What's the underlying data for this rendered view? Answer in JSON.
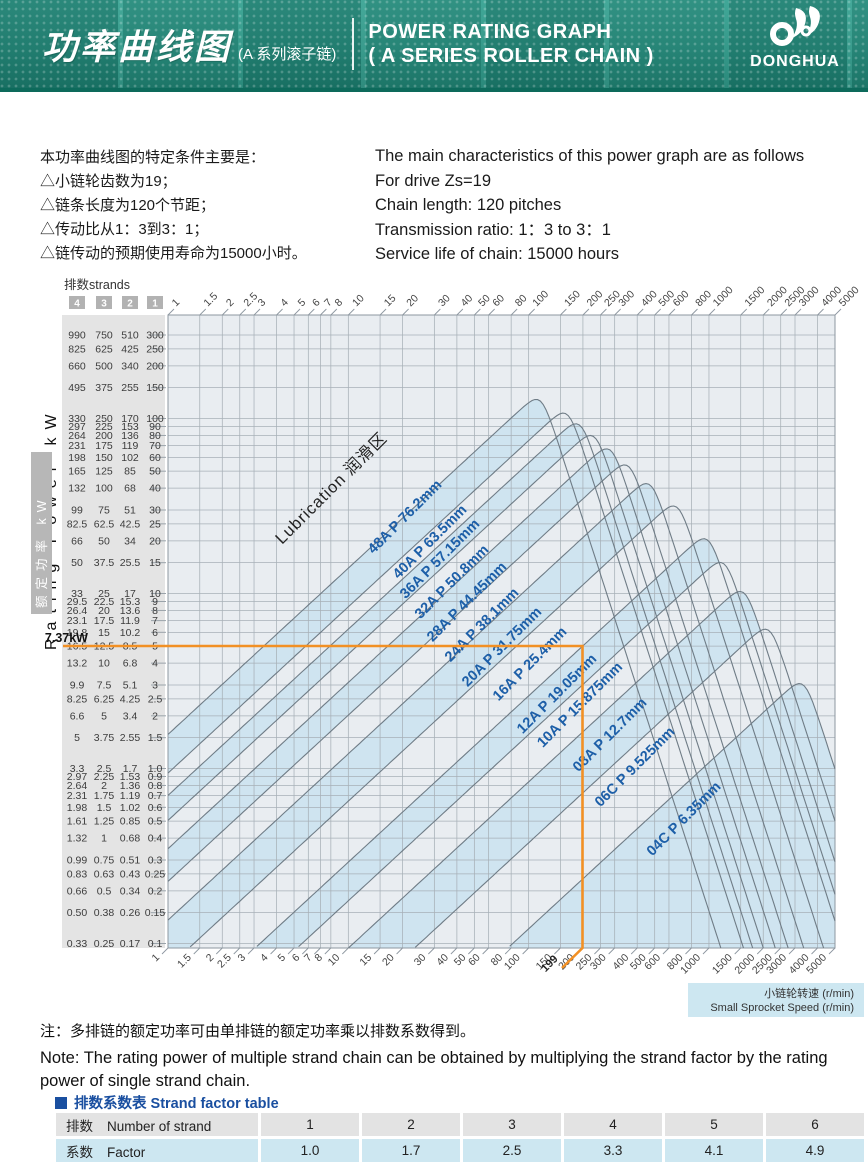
{
  "header": {
    "title_cn": "功率曲线图",
    "subtitle_cn": "(A 系列滚子链)",
    "title_en_line1": "POWER RATING GRAPH",
    "title_en_line2": "( A SERIES ROLLER CHAIN )",
    "brand": "DONGHUA"
  },
  "intro": {
    "cn_lines": [
      "本功率曲线图的特定条件主要是：",
      "△小链轮齿数为19；",
      "△链条长度为120个节距；",
      "△传动比从1：3到3：1；",
      "△链传动的预期使用寿命为15000小时。"
    ],
    "en_lines": [
      "The main characteristics of this power graph  are as follows",
      "For drive Zs=19",
      "Chain length: 120 pitches",
      "Transmission ratio: 1：3 to 3：1",
      "Service life of chain: 15000 hours"
    ]
  },
  "chart": {
    "strands_label": "排数strands",
    "strand_numbers": [
      "4",
      "3",
      "2",
      "1"
    ],
    "y_axis_label_en": "Rating Power kW",
    "y_axis_label_cn": "额定功率 kW",
    "rows": [
      [
        "990",
        "750",
        "510",
        "300"
      ],
      [
        "825",
        "625",
        "425",
        "250"
      ],
      [
        "660",
        "500",
        "340",
        "200"
      ],
      [
        "495",
        "375",
        "255",
        "150"
      ],
      [
        "330",
        "250",
        "170",
        "100"
      ],
      [
        "297",
        "225",
        "153",
        "90"
      ],
      [
        "264",
        "200",
        "136",
        "80"
      ],
      [
        "231",
        "175",
        "119",
        "70"
      ],
      [
        "198",
        "150",
        "102",
        "60"
      ],
      [
        "165",
        "125",
        "85",
        "50"
      ],
      [
        "132",
        "100",
        "68",
        "40"
      ],
      [
        "99",
        "75",
        "51",
        "30"
      ],
      [
        "82.5",
        "62.5",
        "42.5",
        "25"
      ],
      [
        "66",
        "50",
        "34",
        "20"
      ],
      [
        "50",
        "37.5",
        "25.5",
        "15"
      ],
      [
        "33",
        "25",
        "17",
        "10"
      ],
      [
        "29.5",
        "22.5",
        "15.3",
        "9"
      ],
      [
        "26.4",
        "20",
        "13.6",
        "8"
      ],
      [
        "23.1",
        "17.5",
        "11.9",
        "7"
      ],
      [
        "19.8",
        "15",
        "10.2",
        "6"
      ],
      [
        "16.5",
        "12.5",
        "8.5",
        "5"
      ],
      [
        "13.2",
        "10",
        "6.8",
        "4"
      ],
      [
        "9.9",
        "7.5",
        "5.1",
        "3"
      ],
      [
        "8.25",
        "6.25",
        "4.25",
        "2.5"
      ],
      [
        "6.6",
        "5",
        "3.4",
        "2"
      ],
      [
        "5",
        "3.75",
        "2.55",
        "1.5"
      ],
      [
        "3.3",
        "2.5",
        "1.7",
        "1.0"
      ],
      [
        "2.97",
        "2.25",
        "1.53",
        "0.9"
      ],
      [
        "2.64",
        "2",
        "1.36",
        "0.8"
      ],
      [
        "2.31",
        "1.75",
        "1.19",
        "0.7"
      ],
      [
        "1.98",
        "1.5",
        "1.02",
        "0.6"
      ],
      [
        "1.61",
        "1.25",
        "0.85",
        "0.5"
      ],
      [
        "1.32",
        "1",
        "0.68",
        "0.4"
      ],
      [
        "0.99",
        "0.75",
        "0.51",
        "0.3"
      ],
      [
        "0.83",
        "0.63",
        "0.43",
        "0.25"
      ],
      [
        "0.66",
        "0.5",
        "0.34",
        "0.2"
      ],
      [
        "0.50",
        "0.38",
        "0.26",
        "0.15"
      ],
      [
        "0.33",
        "0.25",
        "0.17",
        "0.1"
      ]
    ],
    "x_ticks": [
      "1",
      "1.5",
      "2",
      "2.5",
      "3",
      "4",
      "5",
      "6",
      "7",
      "8",
      "10",
      "15",
      "20",
      "30",
      "40",
      "50",
      "60",
      "80",
      "100",
      "150",
      "200",
      "250",
      "300",
      "400",
      "500",
      "600",
      "800",
      "1000",
      "1500",
      "2000",
      "2500",
      "3000",
      "4000",
      "5000"
    ],
    "curves": [
      {
        "id": "04C",
        "label": "04C P 6.35mm",
        "pitch": 6.35
      },
      {
        "id": "06C",
        "label": "06C P 9.525mm",
        "pitch": 9.525
      },
      {
        "id": "08A",
        "label": "08A P 12.7mm",
        "pitch": 12.7
      },
      {
        "id": "10A",
        "label": "10A P 15.875mm",
        "pitch": 15.875
      },
      {
        "id": "12A",
        "label": "12A P 19.05mm",
        "pitch": 19.05
      },
      {
        "id": "16A",
        "label": "16A P 25.4mm",
        "pitch": 25.4
      },
      {
        "id": "20A",
        "label": "20A P 31.75mm",
        "pitch": 31.75
      },
      {
        "id": "24A",
        "label": "24A P 38.1mm",
        "pitch": 38.1
      },
      {
        "id": "28A",
        "label": "28A P 44.45mm",
        "pitch": 44.45
      },
      {
        "id": "32A",
        "label": "32A P 50.8mm",
        "pitch": 50.8
      },
      {
        "id": "36A",
        "label": "36A P 57.15mm",
        "pitch": 57.15
      },
      {
        "id": "40A",
        "label": "40A P 63.5mm",
        "pitch": 63.5
      },
      {
        "id": "48A",
        "label": "48A P 76.2mm",
        "pitch": 76.2
      }
    ],
    "lubrication": "Lubrication 润滑区",
    "annotation": {
      "power_label": "7.37kW",
      "speed_label": "199"
    },
    "speed_axis_box": {
      "cn": "小链轮转速 (r/min)",
      "en": "Small Sprocket Speed (r/min)"
    }
  },
  "chart_data": {
    "type": "line",
    "title": "Power rating graph, A series roller chain, Zs=19",
    "x_axis": {
      "label": "Small Sprocket Speed (r/min)",
      "scale": "log",
      "range": [
        1,
        5000
      ]
    },
    "y_axis": {
      "label": "Rating Power kW",
      "scale": "log",
      "range_single_strand": [
        0.1,
        300
      ],
      "range_2_strand": [
        0.17,
        510
      ],
      "range_3_strand": [
        0.25,
        750
      ],
      "range_4_strand": [
        0.33,
        990
      ]
    },
    "strand_multipliers": {
      "1": 1.0,
      "2": 1.7,
      "3": 2.5,
      "4": 3.3
    },
    "rising_slope_log_log": 0.95,
    "series": [
      {
        "chain": "04C",
        "pitch_mm": 6.35,
        "peak_rpm": 3400,
        "peak_kw_single_strand": 3.4
      },
      {
        "chain": "06C",
        "pitch_mm": 9.525,
        "peak_rpm": 2200,
        "peak_kw_single_strand": 7.0
      },
      {
        "chain": "08A",
        "pitch_mm": 12.7,
        "peak_rpm": 1590,
        "peak_kw_single_strand": 11.6
      },
      {
        "chain": "10A",
        "pitch_mm": 15.875,
        "peak_rpm": 1230,
        "peak_kw_single_strand": 17
      },
      {
        "chain": "12A",
        "pitch_mm": 19.05,
        "peak_rpm": 1000,
        "peak_kw_single_strand": 23
      },
      {
        "chain": "16A",
        "pitch_mm": 25.4,
        "peak_rpm": 680,
        "peak_kw_single_strand": 36
      },
      {
        "chain": "20A",
        "pitch_mm": 31.75,
        "peak_rpm": 480,
        "peak_kw_single_strand": 48
      },
      {
        "chain": "24A",
        "pitch_mm": 38.1,
        "peak_rpm": 360,
        "peak_kw_single_strand": 61
      },
      {
        "chain": "28A",
        "pitch_mm": 44.45,
        "peak_rpm": 290,
        "peak_kw_single_strand": 76
      },
      {
        "chain": "32A",
        "pitch_mm": 50.8,
        "peak_rpm": 235,
        "peak_kw_single_strand": 90
      },
      {
        "chain": "36A",
        "pitch_mm": 57.15,
        "peak_rpm": 195,
        "peak_kw_single_strand": 105
      },
      {
        "chain": "40A",
        "pitch_mm": 63.5,
        "peak_rpm": 165,
        "peak_kw_single_strand": 121
      },
      {
        "chain": "48A",
        "pitch_mm": 76.2,
        "peak_rpm": 117,
        "peak_kw_single_strand": 145
      }
    ],
    "example_point": {
      "chain": "12A",
      "speed_rpm": 199,
      "power_kw": 7.37
    }
  },
  "note": {
    "cn": "注：多排链的额定功率可由单排链的额定功率乘以排数系数得到。",
    "en_line1": "Note: The rating power of multiple strand chain can be obtained by multiplying the strand factor by the rating",
    "en_line2": "power of single strand chain."
  },
  "factor_table": {
    "title": "排数系数表 Strand factor table",
    "row1_label_cn": "排数",
    "row1_label_en": "Number of strand",
    "row2_label_cn": "系数",
    "row2_label_en": "Factor",
    "strands": [
      "1",
      "2",
      "3",
      "4",
      "5",
      "6"
    ],
    "factors": [
      "1.0",
      "1.7",
      "2.5",
      "3.3",
      "4.1",
      "4.9"
    ]
  },
  "colors": {
    "accent_orange": "#F29024",
    "curve_label_blue": "#1D5FA8",
    "band_blue": "#CFE4F0",
    "plot_bg": "#E9EDF1",
    "panel_gray": "#E4E4E4",
    "grid_gray": "#A7B0B7",
    "curve_stroke": "#6F7C86",
    "table_blue": "#CDE7F1",
    "header_teal": "#2B9484",
    "title_blue": "#1A4FA0"
  }
}
